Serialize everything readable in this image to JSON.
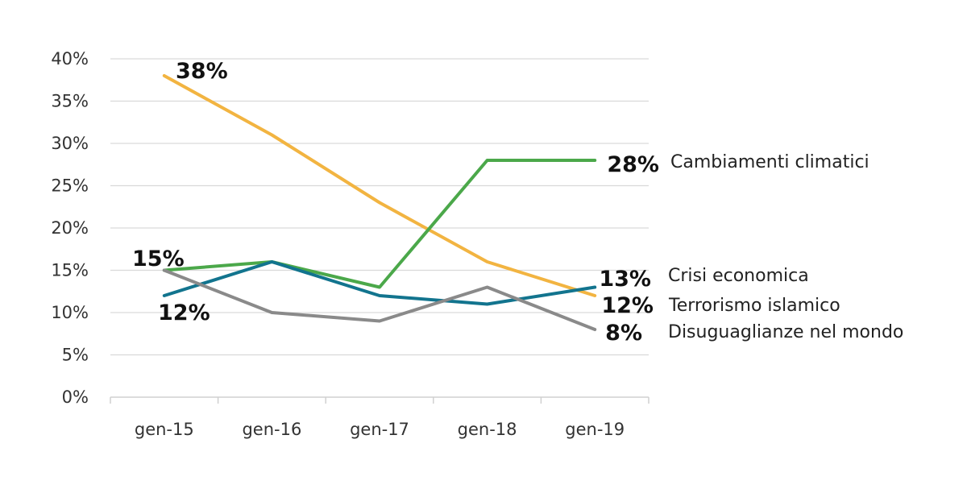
{
  "chart_data": {
    "type": "line",
    "categories": [
      "gen-15",
      "gen-16",
      "gen-17",
      "gen-18",
      "gen-19"
    ],
    "ylim": [
      0,
      40
    ],
    "yticks": [
      "0%",
      "5%",
      "10%",
      "15%",
      "20%",
      "25%",
      "30%",
      "35%",
      "40%"
    ],
    "grid": true,
    "series": [
      {
        "name": "Terrorismo islamico",
        "color": "#F2B441",
        "values": [
          38,
          31,
          23,
          16,
          12
        ]
      },
      {
        "name": "Cambiamenti climatici",
        "color": "#4BA84A",
        "values": [
          15,
          16,
          13,
          28,
          28
        ]
      },
      {
        "name": "Crisi economica",
        "color": "#12748E",
        "values": [
          12,
          16,
          12,
          11,
          13
        ]
      },
      {
        "name": "Disuguaglianze nel mondo",
        "color": "#8A8A8A",
        "values": [
          15,
          10,
          9,
          13,
          8
        ]
      }
    ],
    "data_labels": [
      {
        "text": "38%"
      },
      {
        "text": "15%"
      },
      {
        "text": "12%"
      },
      {
        "text": "28%"
      },
      {
        "text": "13%"
      },
      {
        "text": "12%"
      },
      {
        "text": "8%"
      }
    ]
  }
}
